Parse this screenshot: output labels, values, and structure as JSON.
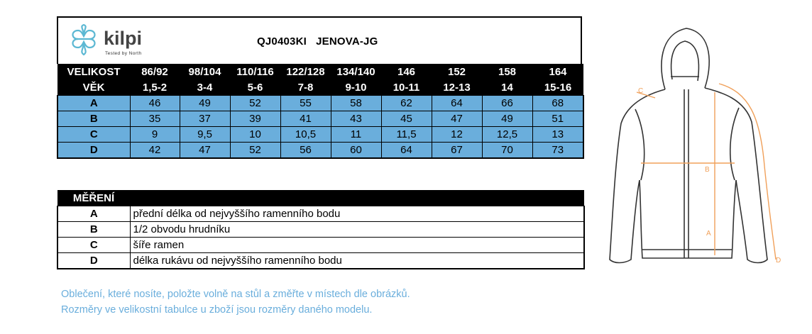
{
  "brand": {
    "name": "kilpi",
    "tagline": "Tested by North"
  },
  "product": {
    "code": "QJ0403KI",
    "name": "JENOVA-JG"
  },
  "size_table": {
    "header_size": "VELIKOST",
    "header_age": "VĚK",
    "columns": [
      {
        "size": "86/92",
        "age": "1,5-2"
      },
      {
        "size": "98/104",
        "age": "3-4"
      },
      {
        "size": "110/116",
        "age": "5-6"
      },
      {
        "size": "122/128",
        "age": "7-8"
      },
      {
        "size": "134/140",
        "age": "9-10"
      },
      {
        "size": "146",
        "age": "10-11"
      },
      {
        "size": "152",
        "age": "12-13"
      },
      {
        "size": "158",
        "age": "14"
      },
      {
        "size": "164",
        "age": "15-16"
      }
    ],
    "rows": [
      {
        "label": "A",
        "values": [
          "46",
          "49",
          "52",
          "55",
          "58",
          "62",
          "64",
          "66",
          "68"
        ]
      },
      {
        "label": "B",
        "values": [
          "35",
          "37",
          "39",
          "41",
          "43",
          "45",
          "47",
          "49",
          "51"
        ]
      },
      {
        "label": "C",
        "values": [
          "9",
          "9,5",
          "10",
          "10,5",
          "11",
          "11,5",
          "12",
          "12,5",
          "13"
        ]
      },
      {
        "label": "D",
        "values": [
          "42",
          "47",
          "52",
          "56",
          "60",
          "64",
          "67",
          "70",
          "73"
        ]
      }
    ]
  },
  "measurements": {
    "header": "MĚŘENÍ",
    "items": [
      {
        "code": "A",
        "text": "přední délka od nejvyššího ramenního bodu"
      },
      {
        "code": "B",
        "text": "1/2 obvodu hrudníku"
      },
      {
        "code": "C",
        "text": "šíře ramen"
      },
      {
        "code": "D",
        "text": "délka rukávu od nejvyššího ramenního bodu"
      }
    ]
  },
  "notes": [
    "Oblečení, které nosíte, položte volně na stůl a změřte v místech dle obrázků.",
    "Rozměry ve velikostní tabulce u zboží jsou rozměry daného modelu."
  ],
  "diagram_labels": {
    "a": "A",
    "b": "B",
    "c": "C",
    "d": "D"
  },
  "colors": {
    "table_blue": "#6aaedc",
    "logo_blue": "#5cb8d3",
    "measure_orange": "#f0a05a",
    "header_black": "#000000"
  }
}
